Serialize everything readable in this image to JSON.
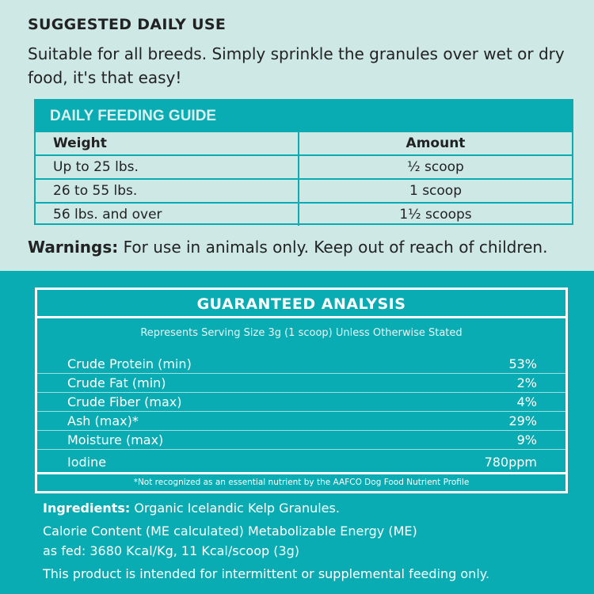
{
  "suggested": {
    "title": "SUGGESTED DAILY USE",
    "text": "Suitable for all breeds. Simply sprinkle the granules over wet or dry food, it's that easy!"
  },
  "feeding_guide": {
    "title": "DAILY FEEDING GUIDE",
    "headers": [
      "Weight",
      "Amount"
    ],
    "rows": [
      {
        "weight": "Up to 25 lbs.",
        "amount": "½ scoop"
      },
      {
        "weight": "26 to 55 lbs.",
        "amount": "1 scoop"
      },
      {
        "weight": "56 lbs. and over",
        "amount": "1½ scoops"
      }
    ]
  },
  "warnings": {
    "label": "Warnings:",
    "text": " For use in animals only. Keep out of reach of children."
  },
  "analysis": {
    "title": "GUARANTEED ANALYSIS",
    "subtitle": "Represents Serving Size 3g (1 scoop) Unless Otherwise Stated",
    "rows": [
      {
        "name": "Crude Protein (min)",
        "value": "53%"
      },
      {
        "name": "Crude Fat (min)",
        "value": "2%"
      },
      {
        "name": "Crude Fiber (max)",
        "value": "4%"
      },
      {
        "name": "Ash (max)*",
        "value": "29%"
      },
      {
        "name": "Moisture (max)",
        "value": "9%"
      },
      {
        "name": "Iodine",
        "value": "780ppm"
      }
    ],
    "footnote": "*Not recognized as an essential nutrient by the AAFCO Dog Food Nutrient Profile"
  },
  "ingredients": {
    "label": "Ingredients:",
    "text": " Organic Icelandic Kelp Granules."
  },
  "calorie": {
    "line1": "Calorie Content (ME calculated) Metabolizable Energy (ME)",
    "line2": "as fed: 3680 Kcal/Kg, 11 Kcal/scoop (3g)"
  },
  "disclaimer": "This product is intended for intermittent or supplemental feeding only.",
  "colors": {
    "teal": "#0aacb3",
    "mint": "#cde8e5"
  }
}
